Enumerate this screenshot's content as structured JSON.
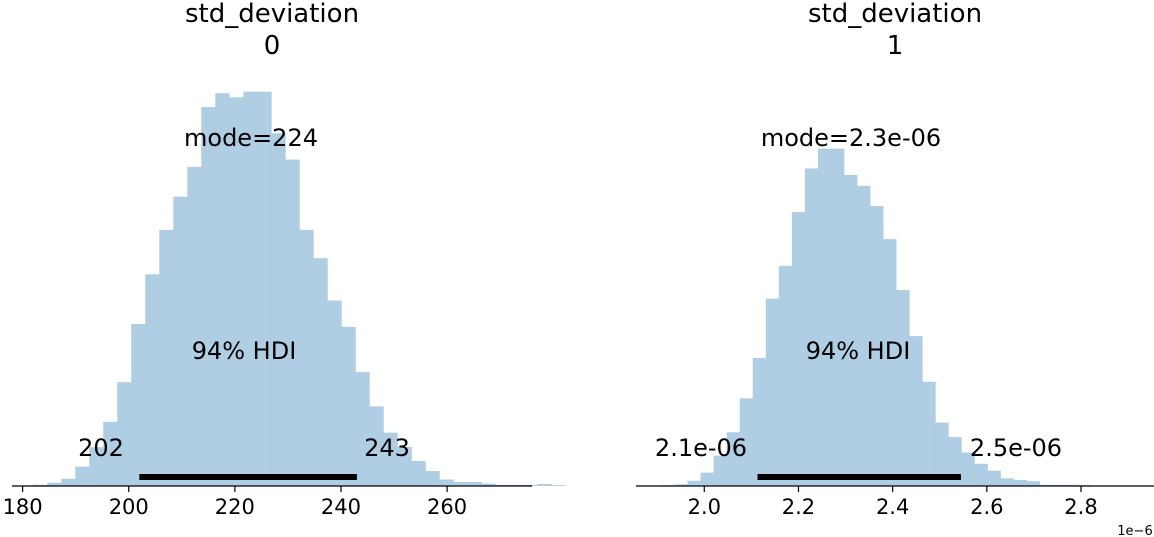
{
  "chart_data": [
    {
      "type": "bar",
      "title_line1": "std_deviation",
      "title_line2": "0",
      "mode_label": "mode=224",
      "hdi_label": "94% HDI",
      "hdi_low_label": "202",
      "hdi_high_label": "243",
      "hdi": [
        202,
        243
      ],
      "bin_start": 182,
      "bin_width": 2.64,
      "bin_heights": [
        0.3,
        0.8,
        1.8,
        4.8,
        9.6,
        15.9,
        25.7,
        40.1,
        52.4,
        63.4,
        71.6,
        79.0,
        93.8,
        97.2,
        96.2,
        97.6,
        97.6,
        87.3,
        80.8,
        63.4,
        56.4,
        45.9,
        39.4,
        28.2,
        19.7,
        13.2,
        9.7,
        6.2,
        3.7,
        1.6,
        1.0,
        1.0,
        0.6,
        0.3,
        0.3,
        0.3,
        0.5,
        0.2
      ],
      "xlim": [
        178,
        276
      ],
      "ylim": [
        0,
        100
      ],
      "xticks": [
        180,
        200,
        220,
        240,
        260
      ],
      "xtick_labels": [
        "180",
        "200",
        "220",
        "240",
        "260"
      ]
    },
    {
      "type": "bar",
      "title_line1": "std_deviation",
      "title_line2": "1",
      "mode_label": "mode=2.3e-06",
      "hdi_label": "94% HDI",
      "hdi_low_label": "2.1e-06",
      "hdi_high_label": "2.5e-06",
      "hdi": [
        2.113,
        2.545
      ],
      "bin_start": 1.909,
      "bin_width": 0.0277,
      "bin_heights": [
        0.2,
        0.4,
        1.3,
        3.3,
        7.5,
        13.3,
        21.7,
        31.7,
        46.4,
        54.5,
        67.8,
        78.6,
        83.5,
        83.5,
        77.0,
        74.3,
        69.3,
        61.1,
        48.5,
        37.1,
        25.8,
        15.7,
        12.1,
        8.3,
        5.5,
        3.8,
        1.9,
        1.5,
        1.2,
        0.3,
        0.3,
        0.3,
        0.2
      ],
      "xlim": [
        1.855,
        2.955
      ],
      "ylim": [
        0,
        100
      ],
      "xticks": [
        2.0,
        2.2,
        2.4,
        2.6,
        2.8
      ],
      "xtick_labels": [
        "2.0",
        "2.2",
        "2.4",
        "2.6",
        "2.8"
      ],
      "offset_label": "1e−6"
    }
  ]
}
